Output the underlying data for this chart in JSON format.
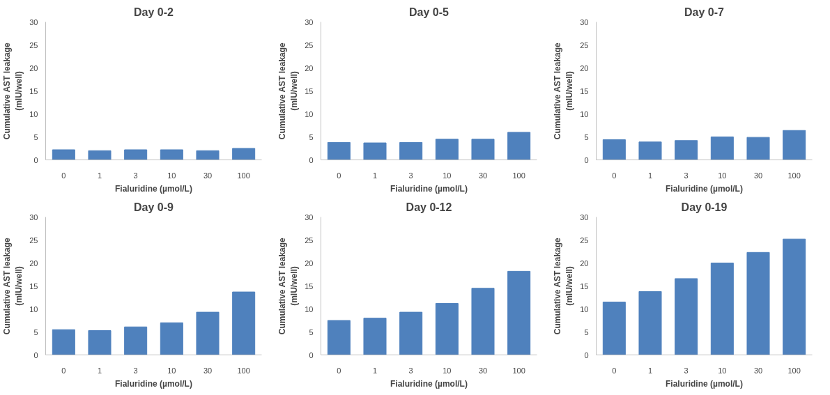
{
  "chart_data": [
    {
      "type": "bar",
      "title": "Day 0-2",
      "xlabel": "Fialuridine (µmol/L)",
      "ylabel": "Cumulative AST leakage\n(mIU/well)",
      "categories": [
        "0",
        "1",
        "3",
        "10",
        "30",
        "100"
      ],
      "values": [
        2.2,
        2.0,
        2.2,
        2.2,
        2.0,
        2.5
      ],
      "color": "#4f81bd",
      "ylim": [
        0,
        30
      ],
      "yticks": [
        0,
        5,
        10,
        15,
        20,
        25,
        30
      ],
      "grid": false
    },
    {
      "type": "bar",
      "title": "Day 0-5",
      "xlabel": "Fialuridine (µmol/L)",
      "ylabel": "Cumulative AST leakage\n(mIU/well)",
      "categories": [
        "0",
        "1",
        "3",
        "10",
        "30",
        "100"
      ],
      "values": [
        3.8,
        3.7,
        3.8,
        4.5,
        4.5,
        6.0
      ],
      "color": "#4f81bd",
      "ylim": [
        0,
        30
      ],
      "yticks": [
        0,
        5,
        10,
        15,
        20,
        25,
        30
      ],
      "grid": false
    },
    {
      "type": "bar",
      "title": "Day 0-7",
      "xlabel": "Fialuridine (µmol/L)",
      "ylabel": "Cumulative AST leakage\n(mIU/well)",
      "categories": [
        "0",
        "1",
        "3",
        "10",
        "30",
        "100"
      ],
      "values": [
        4.4,
        3.9,
        4.2,
        5.0,
        4.9,
        6.4
      ],
      "color": "#4f81bd",
      "ylim": [
        0,
        30
      ],
      "yticks": [
        0,
        5,
        10,
        15,
        20,
        25,
        30
      ],
      "grid": false
    },
    {
      "type": "bar",
      "title": "Day 0-9",
      "xlabel": "Fialuridine (µmol/L)",
      "ylabel": "Cumulative AST leakage\n(mIU/well)",
      "categories": [
        "0",
        "1",
        "3",
        "10",
        "30",
        "100"
      ],
      "values": [
        5.5,
        5.3,
        6.1,
        7.0,
        9.3,
        13.7
      ],
      "color": "#4f81bd",
      "ylim": [
        0,
        30
      ],
      "yticks": [
        0,
        5,
        10,
        15,
        20,
        25,
        30
      ],
      "grid": false
    },
    {
      "type": "bar",
      "title": "Day 0-12",
      "xlabel": "Fialuridine (µmol/L)",
      "ylabel": "Cumulative AST leakage\n(mIU/well)",
      "categories": [
        "0",
        "1",
        "3",
        "10",
        "30",
        "100"
      ],
      "values": [
        7.5,
        8.0,
        9.3,
        11.2,
        14.5,
        18.2
      ],
      "color": "#4f81bd",
      "ylim": [
        0,
        30
      ],
      "yticks": [
        0,
        5,
        10,
        15,
        20,
        25,
        30
      ],
      "grid": false
    },
    {
      "type": "bar",
      "title": "Day 0-19",
      "xlabel": "Fialuridine (µmol/L)",
      "ylabel": "Cumulative AST leakage\n(mIU/well)",
      "categories": [
        "0",
        "1",
        "3",
        "10",
        "30",
        "100"
      ],
      "values": [
        11.5,
        13.8,
        16.6,
        20.0,
        22.3,
        25.2
      ],
      "color": "#4f81bd",
      "ylim": [
        0,
        30
      ],
      "yticks": [
        0,
        5,
        10,
        15,
        20,
        25,
        30
      ],
      "grid": false
    }
  ]
}
